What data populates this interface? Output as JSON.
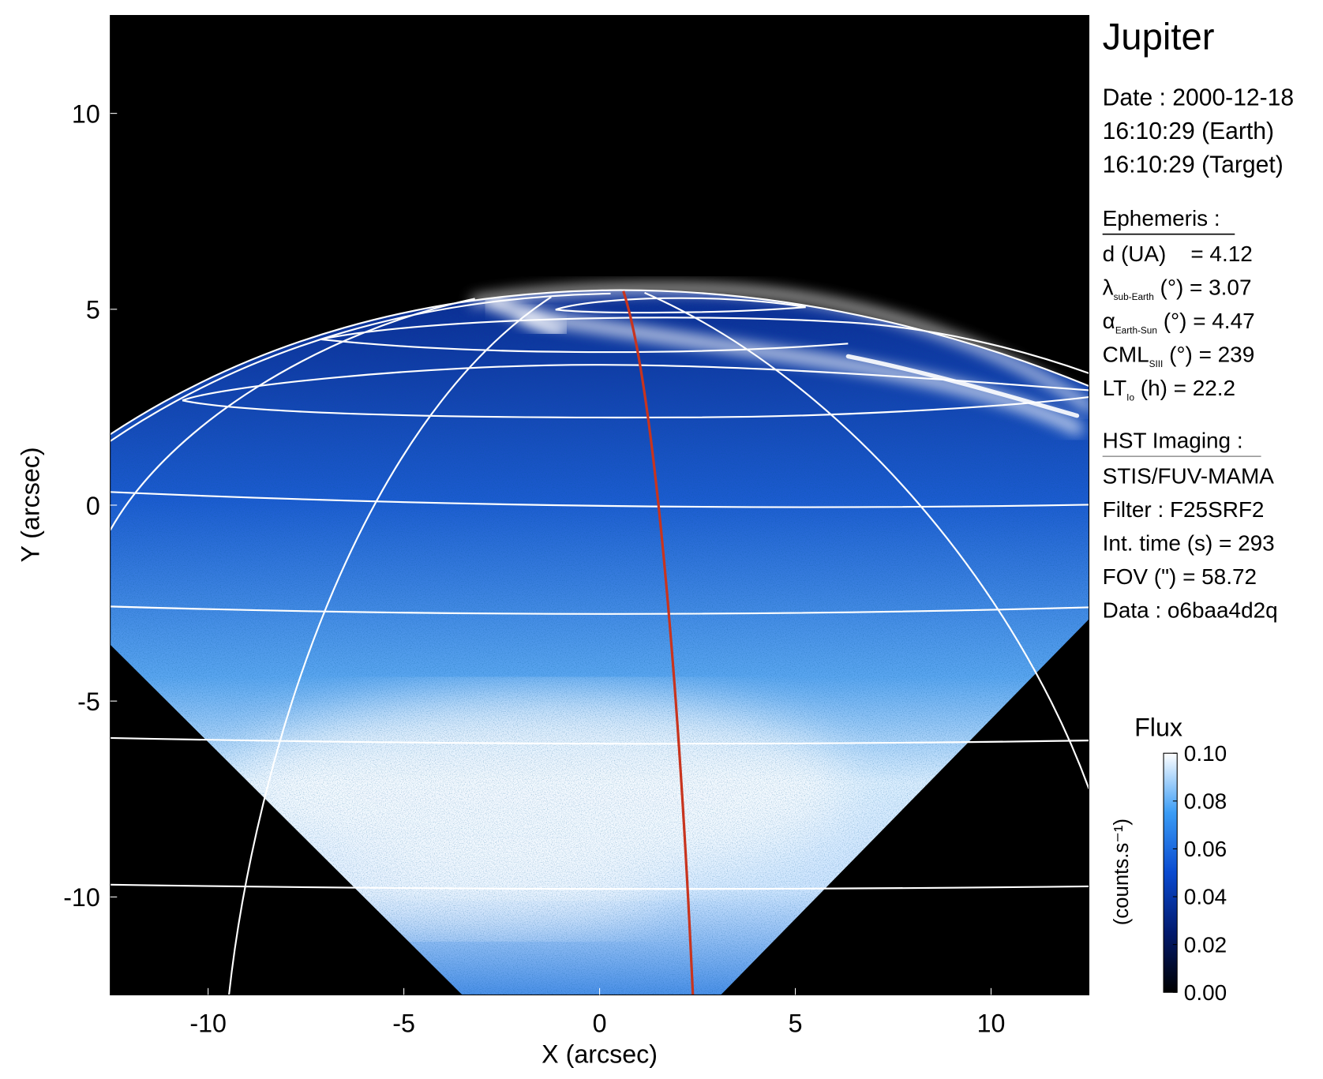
{
  "chart_data": {
    "type": "image",
    "title": "Jupiter",
    "x_label": "X (arcsec)",
    "y_label": "Y (arcsec)",
    "xlim": [
      -12.5,
      12.5
    ],
    "ylim": [
      -12.5,
      12.5
    ],
    "xticks": [
      -10,
      -5,
      0,
      5,
      10
    ],
    "yticks": [
      -10,
      -5,
      0,
      5,
      10
    ],
    "colorbar": {
      "title": "Flux",
      "label": "(counts.s⁻¹)",
      "lim": [
        0,
        0.1
      ],
      "ticks": [
        {
          "value": 0,
          "label": "0.00"
        },
        {
          "value": 0.02,
          "label": "0.02"
        },
        {
          "value": 0.04,
          "label": "0.04"
        },
        {
          "value": 0.06,
          "label": "0.06"
        },
        {
          "value": 0.08,
          "label": "0.08"
        },
        {
          "value": 0.1,
          "label": "0.10"
        }
      ],
      "colormap": [
        "#000000",
        "#021a6e",
        "#0a4ad0",
        "#3a9cf5",
        "#ffffff"
      ]
    }
  },
  "info": {
    "date": [
      "Date : 2000-12-18",
      "16:10:29 (Earth)",
      "16:10:29 (Target)"
    ],
    "ephemeris": {
      "title": "Ephemeris :",
      "rows": [
        {
          "text": "d (UA)    = 4.12"
        },
        {
          "symbol": "λ",
          "sub": "sub-Earth",
          "text": " (°) = 3.07"
        },
        {
          "symbol": "α",
          "sub": "Earth-Sun",
          "text": " (°) = 4.47"
        },
        {
          "symbol": "CML",
          "sub": "SIII",
          "text": " (°) = 239"
        },
        {
          "symbol": "LT",
          "sub": "Io",
          "text": " (h) = 22.2"
        }
      ]
    },
    "imaging": {
      "title": "HST Imaging :",
      "rows": [
        "STIS/FUV-MAMA",
        "Filter : F25SRF2",
        "Int. time (s) = 293",
        "FOV (\") = 58.72",
        "Data : o6baa4d2q"
      ]
    }
  }
}
